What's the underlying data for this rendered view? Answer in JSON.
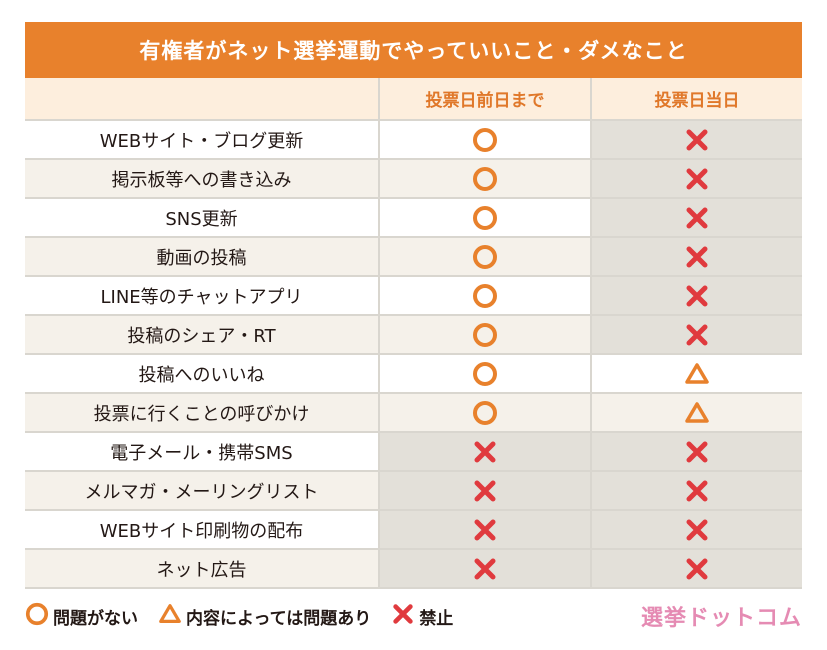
{
  "title": "有権者がネット選挙運動でやっていいこと・ダメなこと",
  "columns": [
    "",
    "投票日前日まで",
    "投票日当日"
  ],
  "rows": [
    {
      "item": "WEBサイト・ブログ更新",
      "before": "ok",
      "day": "no"
    },
    {
      "item": "掲示板等への書き込み",
      "before": "ok",
      "day": "no"
    },
    {
      "item": "SNS更新",
      "before": "ok",
      "day": "no"
    },
    {
      "item": "動画の投稿",
      "before": "ok",
      "day": "no"
    },
    {
      "item": "LINE等のチャットアプリ",
      "before": "ok",
      "day": "no"
    },
    {
      "item": "投稿のシェア・RT",
      "before": "ok",
      "day": "no"
    },
    {
      "item": "投稿へのいいね",
      "before": "ok",
      "day": "maybe"
    },
    {
      "item": "投票に行くことの呼びかけ",
      "before": "ok",
      "day": "maybe"
    },
    {
      "item": "電子メール・携帯SMS",
      "before": "no",
      "day": "no"
    },
    {
      "item": "メルマガ・メーリングリスト",
      "before": "no",
      "day": "no"
    },
    {
      "item": "WEBサイト印刷物の配布",
      "before": "no",
      "day": "no"
    },
    {
      "item": "ネット広告",
      "before": "no",
      "day": "no"
    }
  ],
  "legend": {
    "ok": "問題がない",
    "maybe": "内容によっては問題あり",
    "no": "禁止"
  },
  "logo_text": "選挙ドットコム",
  "icons": {
    "ok": "circle-icon",
    "maybe": "triangle-icon",
    "no": "cross-icon"
  },
  "colors": {
    "header": "#e8812c",
    "ok": "#e8812c",
    "no": "#e03a3e",
    "grey_cell": "#e3e0d9"
  }
}
